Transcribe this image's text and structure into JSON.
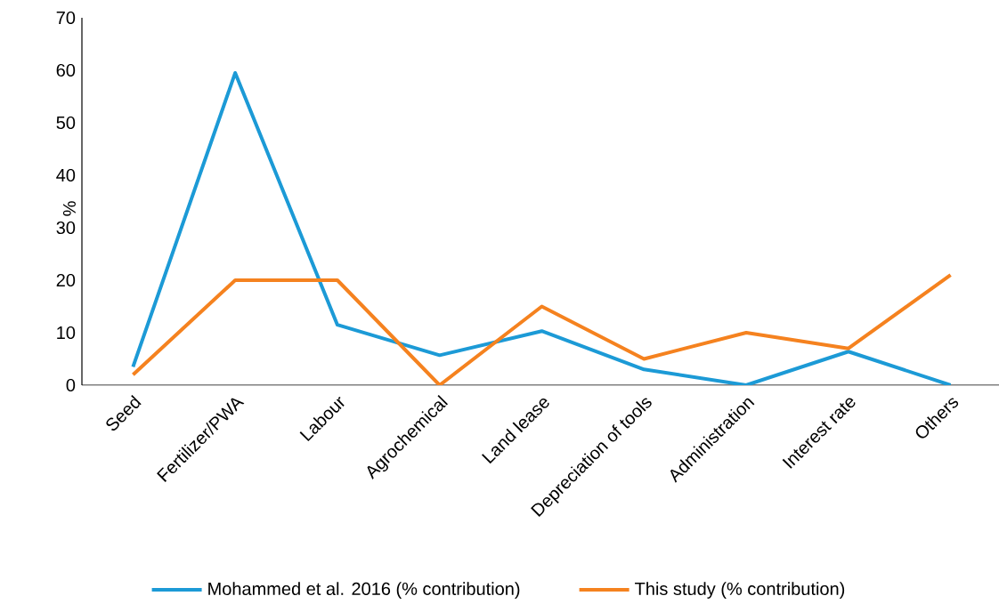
{
  "chart_data": {
    "type": "line",
    "ylabel": "%",
    "categories": [
      "Seed",
      "Fertilizer/PWA",
      "Labour",
      "Agrochemical",
      "Land lease",
      "Depreciation of tools",
      "Administration",
      "Interest rate",
      "Others"
    ],
    "series": [
      {
        "name": "Mohammed et al. 2016 (% contribution)",
        "color": "#1c9ad6",
        "values": [
          3.5,
          59.5,
          11.5,
          5.7,
          10.3,
          3,
          0,
          6.4,
          0
        ]
      },
      {
        "name": "This study (% contribution)",
        "color": "#f5821f",
        "values": [
          2,
          20,
          20,
          0,
          15,
          5,
          10,
          7,
          21
        ]
      }
    ],
    "ylim": [
      0,
      70
    ],
    "yticks": [
      0,
      10,
      20,
      30,
      40,
      50,
      60,
      70
    ],
    "grid": false,
    "legend": "bottom",
    "marker": "none",
    "line_style": "solid"
  }
}
